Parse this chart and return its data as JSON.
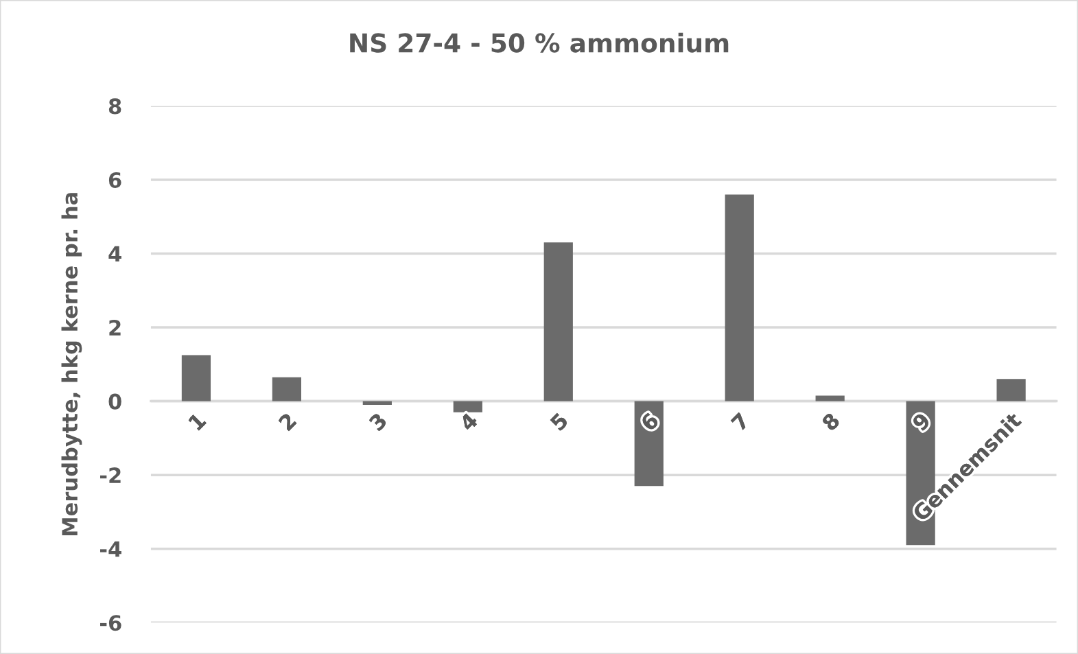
{
  "chart_data": {
    "type": "bar",
    "title": "NS 27-4 - 50 % ammonium",
    "ylabel": "Merudbytte, hkg kerne pr. ha",
    "categories": [
      "1",
      "2",
      "3",
      "4",
      "5",
      "6",
      "7",
      "8",
      "9",
      "Gennemsnit"
    ],
    "values": [
      1.25,
      0.65,
      -0.1,
      -0.3,
      4.3,
      -2.3,
      5.6,
      0.15,
      -3.9,
      0.6
    ],
    "color": "#6b6b6b",
    "ylim": [
      -6,
      8
    ],
    "yticks": [
      -6,
      -4,
      -2,
      0,
      2,
      4,
      6,
      8
    ],
    "grid": "y"
  }
}
